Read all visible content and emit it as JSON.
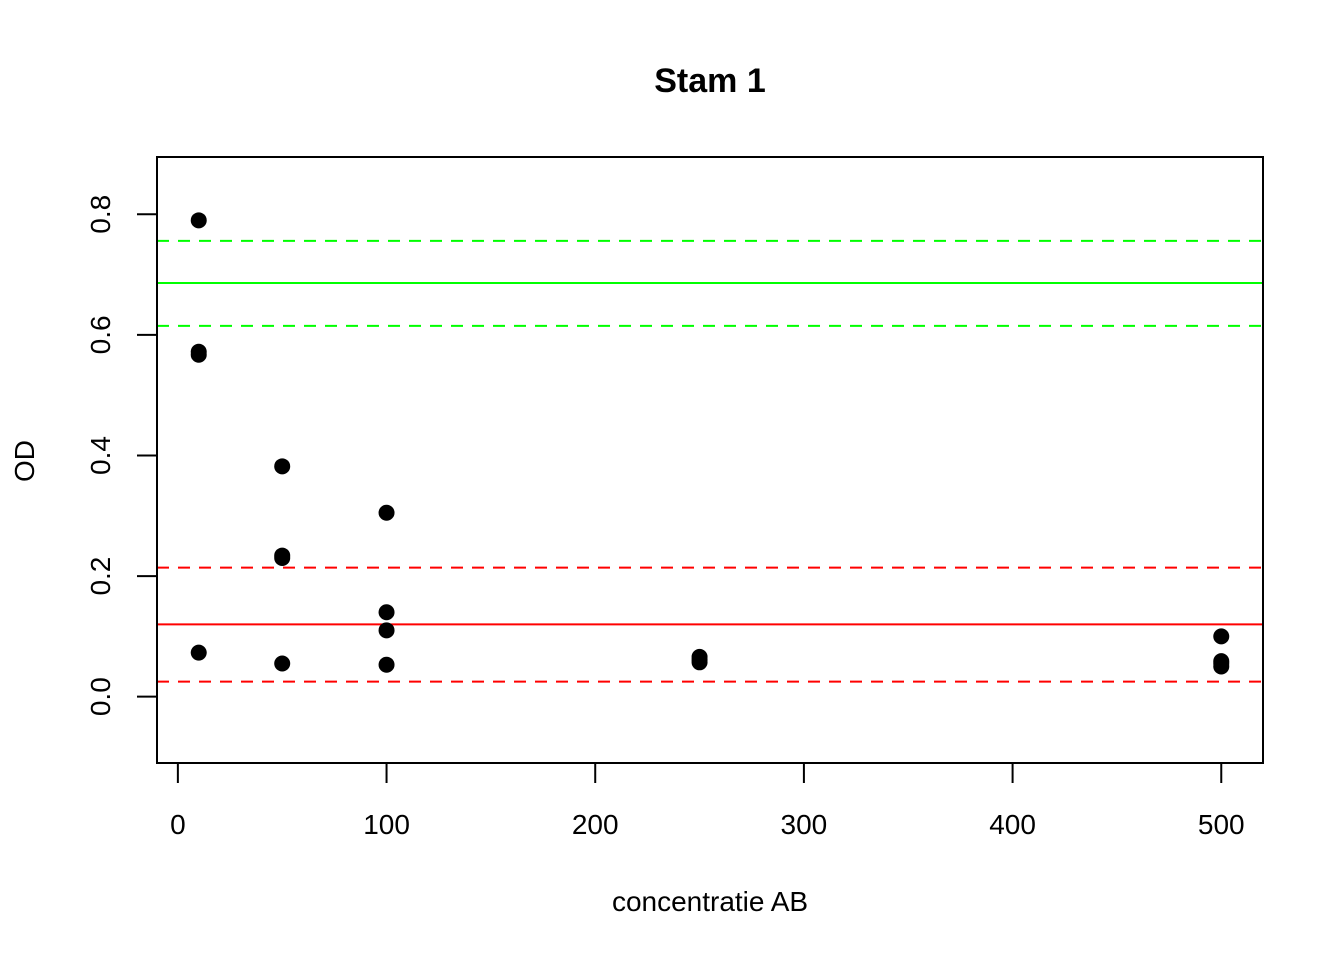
{
  "chart_data": {
    "type": "scatter",
    "title": "Stam 1",
    "xlabel": "concentratie AB",
    "ylabel": "OD",
    "xlim": [
      -10,
      520
    ],
    "ylim": [
      -0.11,
      0.895
    ],
    "x_ticks": [
      0,
      100,
      200,
      300,
      400,
      500
    ],
    "x_tick_labels": [
      "0",
      "100",
      "200",
      "300",
      "400",
      "500"
    ],
    "y_ticks": [
      0.0,
      0.2,
      0.4,
      0.6,
      0.8
    ],
    "y_tick_labels": [
      "0.0",
      "0.2",
      "0.4",
      "0.6",
      "0.8"
    ],
    "grid": false,
    "points": [
      {
        "x": 10,
        "y": 0.79
      },
      {
        "x": 10,
        "y": 0.572
      },
      {
        "x": 10,
        "y": 0.567
      },
      {
        "x": 10,
        "y": 0.073
      },
      {
        "x": 50,
        "y": 0.382
      },
      {
        "x": 50,
        "y": 0.234
      },
      {
        "x": 50,
        "y": 0.23
      },
      {
        "x": 50,
        "y": 0.055
      },
      {
        "x": 100,
        "y": 0.305
      },
      {
        "x": 100,
        "y": 0.14
      },
      {
        "x": 100,
        "y": 0.11
      },
      {
        "x": 100,
        "y": 0.053
      },
      {
        "x": 250,
        "y": 0.066
      },
      {
        "x": 250,
        "y": 0.061
      },
      {
        "x": 250,
        "y": 0.057
      },
      {
        "x": 500,
        "y": 0.1
      },
      {
        "x": 500,
        "y": 0.059
      },
      {
        "x": 500,
        "y": 0.055
      },
      {
        "x": 500,
        "y": 0.05
      }
    ],
    "point_color": "#000000",
    "reference_lines": [
      {
        "y": 0.686,
        "color": "#00ff00",
        "style": "solid"
      },
      {
        "y": 0.756,
        "color": "#00ff00",
        "style": "dashed"
      },
      {
        "y": 0.615,
        "color": "#00ff00",
        "style": "dashed"
      },
      {
        "y": 0.12,
        "color": "#ff0000",
        "style": "solid"
      },
      {
        "y": 0.214,
        "color": "#ff0000",
        "style": "dashed"
      },
      {
        "y": 0.025,
        "color": "#ff0000",
        "style": "dashed"
      }
    ]
  }
}
